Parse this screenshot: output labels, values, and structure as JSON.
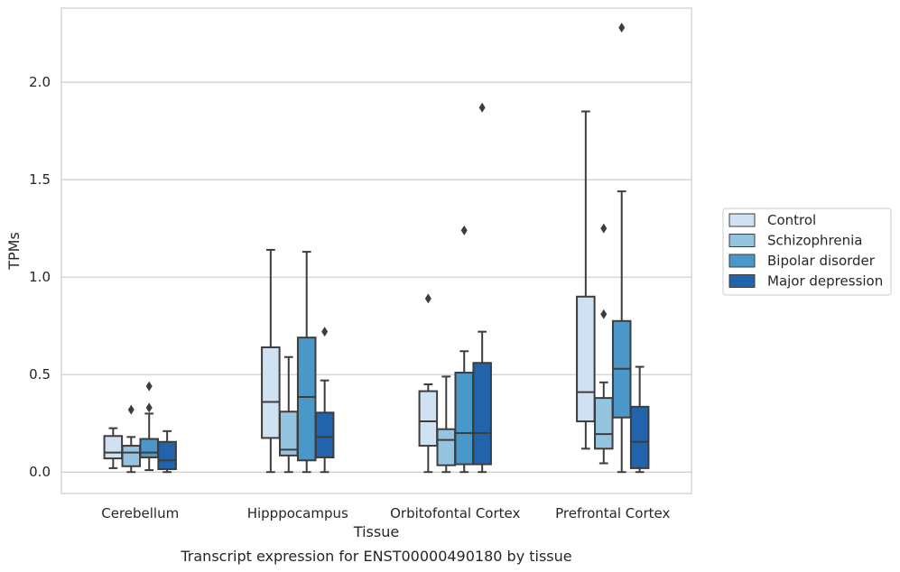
{
  "chart_data": {
    "type": "boxplot",
    "caption": "Transcript expression for ENST00000490180 by tissue",
    "xlabel": "Tissue",
    "ylabel": "TPMs",
    "ylim": [
      -0.11,
      2.38
    ],
    "yticks": [
      "0.0",
      "0.5",
      "1.0",
      "1.5",
      "2.0"
    ],
    "grid": true,
    "legend_position": "right",
    "categories": [
      "Cerebellum",
      "Hipppocampus",
      "Orbitofontal Cortex",
      "Prefrontal Cortex"
    ],
    "series": [
      {
        "name": "Control",
        "color": "#d0e1f2",
        "boxes": [
          {
            "whislo": 0.02,
            "q1": 0.07,
            "med": 0.1,
            "q3": 0.185,
            "whishi": 0.225,
            "fliers": []
          },
          {
            "whislo": 0.0,
            "q1": 0.175,
            "med": 0.36,
            "q3": 0.64,
            "whishi": 1.14,
            "fliers": []
          },
          {
            "whislo": 0.0,
            "q1": 0.135,
            "med": 0.26,
            "q3": 0.415,
            "whishi": 0.45,
            "fliers": [
              0.89
            ]
          },
          {
            "whislo": 0.12,
            "q1": 0.26,
            "med": 0.41,
            "q3": 0.9,
            "whishi": 1.85,
            "fliers": []
          }
        ]
      },
      {
        "name": "Schizophrenia",
        "color": "#94c4df",
        "boxes": [
          {
            "whislo": 0.0,
            "q1": 0.03,
            "med": 0.1,
            "q3": 0.135,
            "whishi": 0.18,
            "fliers": [
              0.32
            ]
          },
          {
            "whislo": 0.0,
            "q1": 0.085,
            "med": 0.115,
            "q3": 0.31,
            "whishi": 0.59,
            "fliers": []
          },
          {
            "whislo": 0.0,
            "q1": 0.035,
            "med": 0.165,
            "q3": 0.22,
            "whishi": 0.49,
            "fliers": []
          },
          {
            "whislo": 0.045,
            "q1": 0.12,
            "med": 0.195,
            "q3": 0.38,
            "whishi": 0.46,
            "fliers": [
              0.81,
              1.25
            ]
          }
        ]
      },
      {
        "name": "Bipolar disorder",
        "color": "#4a98c9",
        "boxes": [
          {
            "whislo": 0.01,
            "q1": 0.075,
            "med": 0.1,
            "q3": 0.17,
            "whishi": 0.3,
            "fliers": [
              0.33,
              0.44
            ]
          },
          {
            "whislo": 0.0,
            "q1": 0.06,
            "med": 0.385,
            "q3": 0.69,
            "whishi": 1.13,
            "fliers": []
          },
          {
            "whislo": 0.0,
            "q1": 0.04,
            "med": 0.2,
            "q3": 0.51,
            "whishi": 0.62,
            "fliers": [
              1.24
            ]
          },
          {
            "whislo": 0.0,
            "q1": 0.28,
            "med": 0.53,
            "q3": 0.775,
            "whishi": 1.44,
            "fliers": [
              2.28
            ]
          }
        ]
      },
      {
        "name": "Major depression",
        "color": "#2164ab",
        "boxes": [
          {
            "whislo": 0.0,
            "q1": 0.015,
            "med": 0.06,
            "q3": 0.155,
            "whishi": 0.21,
            "fliers": []
          },
          {
            "whislo": 0.0,
            "q1": 0.075,
            "med": 0.18,
            "q3": 0.305,
            "whishi": 0.47,
            "fliers": [
              0.72
            ]
          },
          {
            "whislo": 0.0,
            "q1": 0.04,
            "med": 0.2,
            "q3": 0.56,
            "whishi": 0.72,
            "fliers": [
              1.87
            ]
          },
          {
            "whislo": 0.0,
            "q1": 0.02,
            "med": 0.155,
            "q3": 0.335,
            "whishi": 0.54,
            "fliers": []
          }
        ]
      }
    ]
  }
}
